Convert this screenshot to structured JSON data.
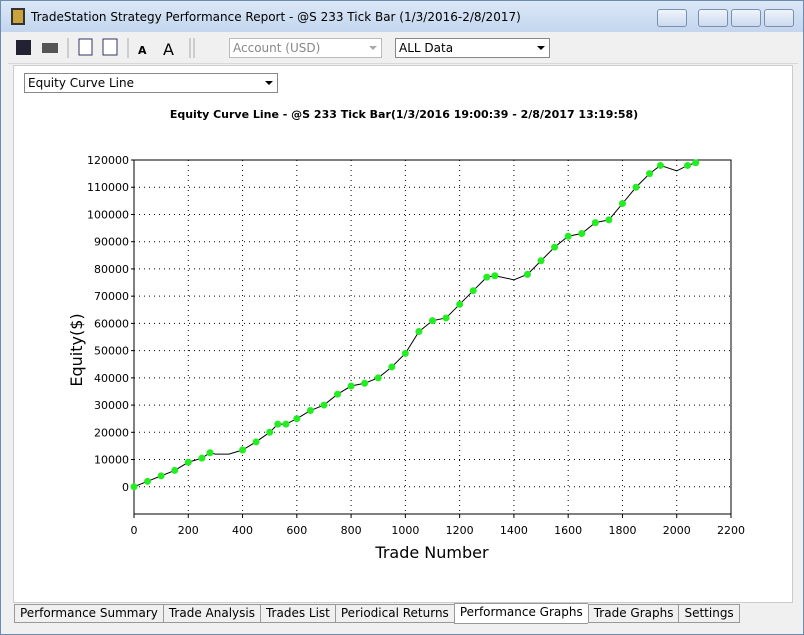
{
  "window": {
    "title": "TradeStation Strategy Performance Report - @S 233 Tick Bar (1/3/2016-2/8/2017)"
  },
  "toolbar": {
    "account": "Account (USD)",
    "range": "ALL Data"
  },
  "view_select": "Equity Curve Line",
  "chart_data": {
    "type": "line",
    "title": "Equity Curve Line - @S 233 Tick Bar(1/3/2016 19:00:39 - 2/8/2017 13:19:58)",
    "x_label": "Trade Number",
    "y_label": "Equity($)",
    "x": [
      0,
      50,
      100,
      150,
      200,
      250,
      280,
      300,
      350,
      400,
      450,
      500,
      530,
      560,
      600,
      650,
      700,
      750,
      800,
      850,
      900,
      950,
      1000,
      1050,
      1100,
      1150,
      1200,
      1250,
      1300,
      1330,
      1400,
      1450,
      1500,
      1550,
      1600,
      1650,
      1700,
      1750,
      1800,
      1850,
      1900,
      1940,
      2000,
      2040,
      2070
    ],
    "values": [
      0,
      2000,
      4000,
      6000,
      9000,
      10500,
      12500,
      12000,
      12000,
      13500,
      16500,
      20000,
      23000,
      23000,
      25000,
      28000,
      30000,
      34000,
      37000,
      38000,
      40000,
      44000,
      49000,
      57000,
      61000,
      62000,
      67000,
      72000,
      77000,
      77500,
      76000,
      78000,
      83000,
      88000,
      92000,
      93000,
      97000,
      98000,
      104000,
      110000,
      115000,
      118000,
      116000,
      118000,
      119000
    ],
    "color": "#000000",
    "marker_color": "#22ee22",
    "xlim": [
      0,
      2200
    ],
    "xticks": [
      0,
      200,
      400,
      600,
      800,
      1000,
      1200,
      1400,
      1600,
      1800,
      2000,
      2200
    ],
    "ylim": [
      -10000,
      120000
    ],
    "yticks": [
      0,
      10000,
      20000,
      30000,
      40000,
      50000,
      60000,
      70000,
      80000,
      90000,
      100000,
      110000,
      120000
    ],
    "grid": true
  },
  "tabs": [
    "Performance Summary",
    "Trade Analysis",
    "Trades List",
    "Periodical Returns",
    "Performance Graphs",
    "Trade Graphs",
    "Settings"
  ],
  "active_tab": 4
}
